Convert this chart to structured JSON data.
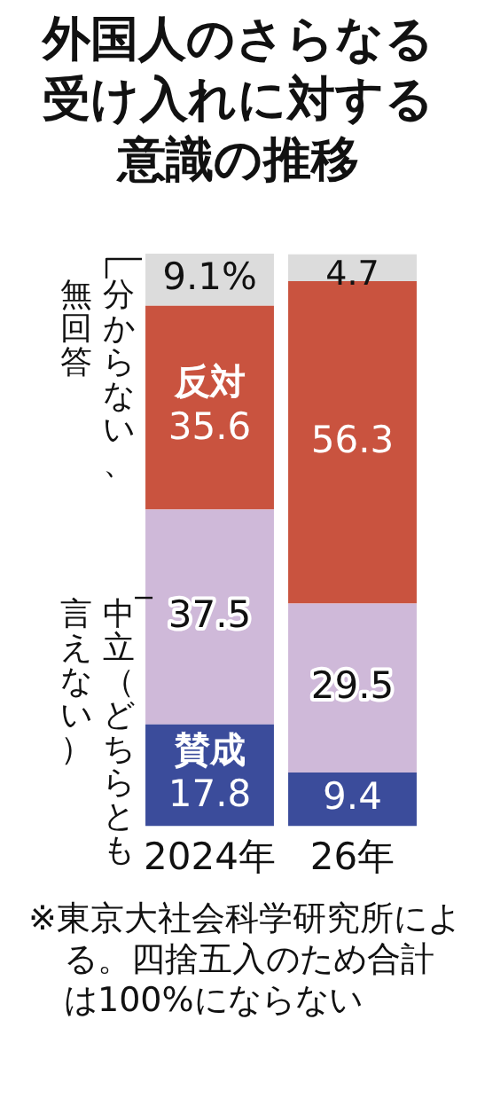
{
  "chart_data": {
    "type": "bar",
    "title": "外国人のさらなる受け入れに対する意識の推移",
    "categories": [
      "2024年",
      "26年"
    ],
    "stacked": true,
    "ylim": [
      0,
      100
    ],
    "legend": false,
    "grid": false,
    "series": [
      {
        "name": "賛成",
        "color": "#3b4c9b",
        "values": [
          17.8,
          9.4
        ],
        "value_labels": [
          "17.8",
          "9.4"
        ]
      },
      {
        "name": "中立（どちらとも言えない）",
        "color": "#cfb9d9",
        "values": [
          37.5,
          29.5
        ],
        "value_labels": [
          "37.5",
          "29.5"
        ]
      },
      {
        "name": "反対",
        "color": "#c9533f",
        "values": [
          35.6,
          56.3
        ],
        "value_labels": [
          "35.6",
          "56.3"
        ]
      },
      {
        "name": "分からない、無回答",
        "color": "#dcdcdc",
        "values": [
          9.1,
          4.7
        ],
        "value_labels": [
          "9.1%",
          "4.7"
        ]
      }
    ],
    "annotations": [
      "※東京大社会科学研究所による。四捨五入のため合計は100%にならない"
    ]
  }
}
